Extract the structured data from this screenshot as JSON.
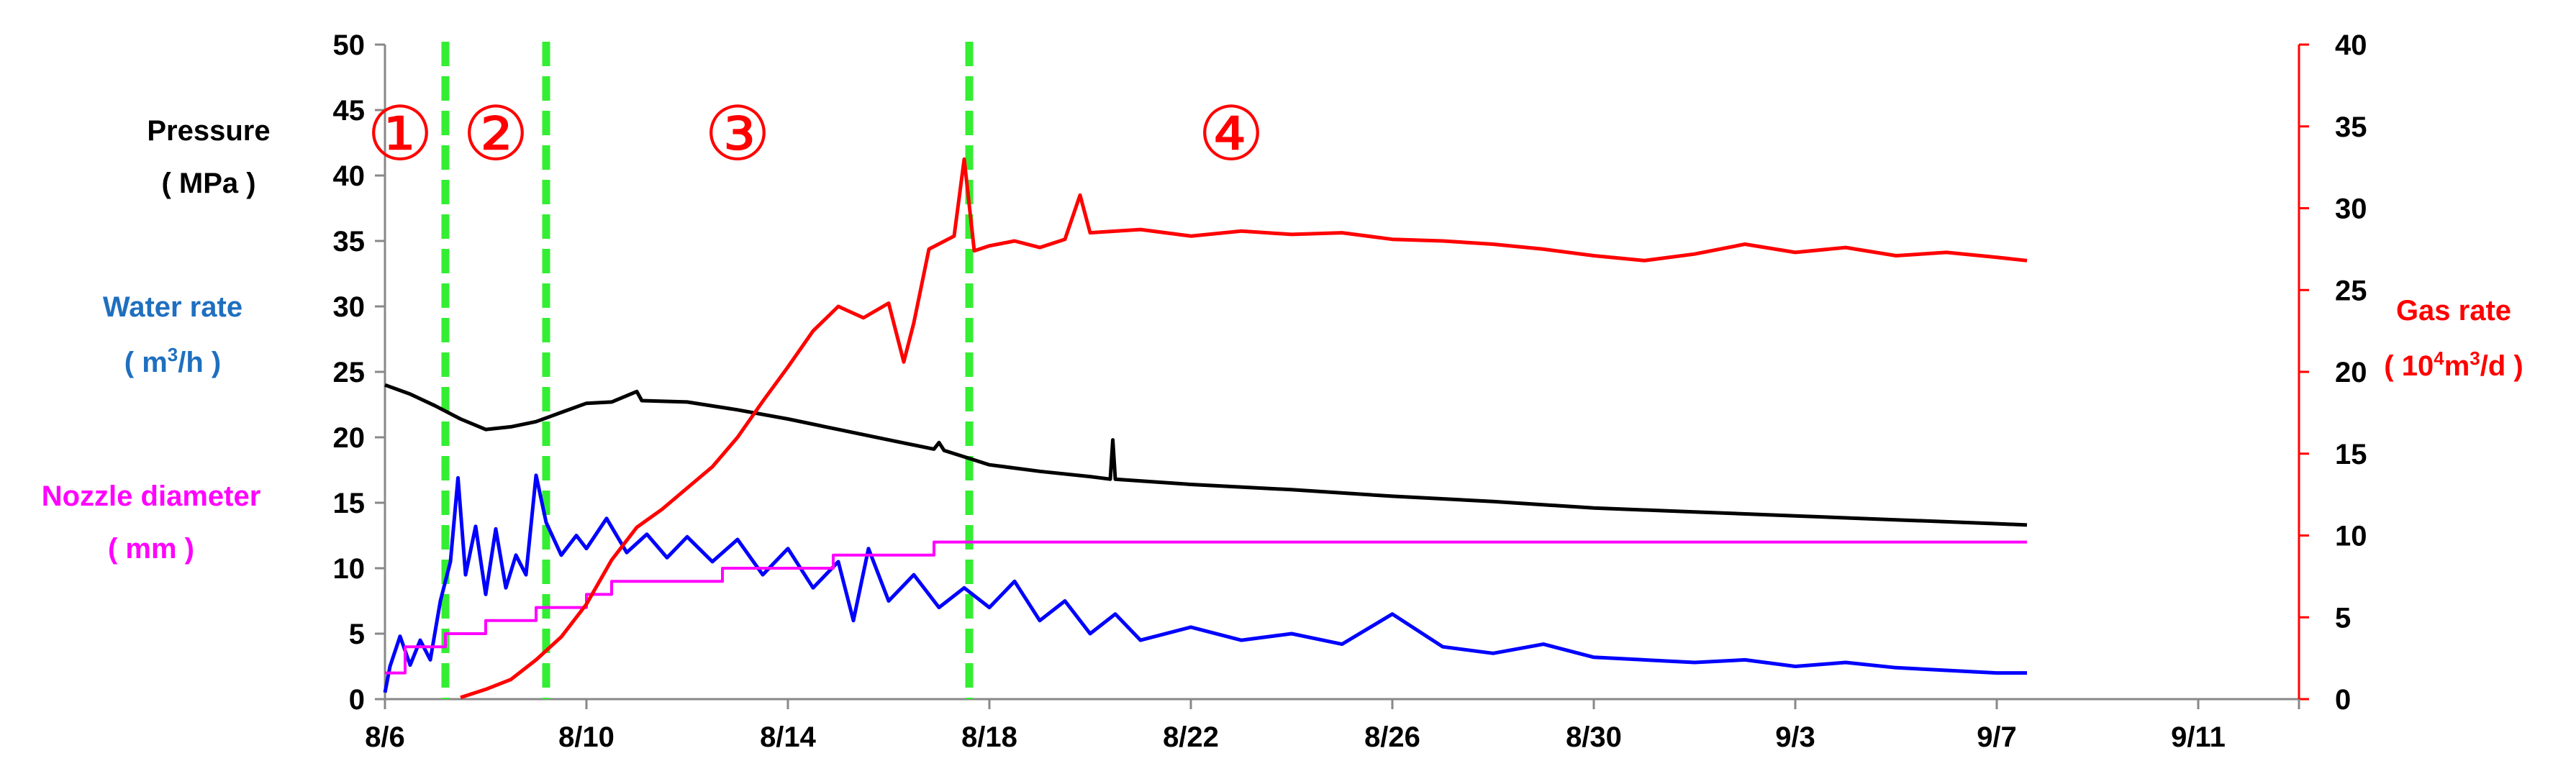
{
  "chart_data": {
    "type": "line",
    "x_axis": {
      "type": "date",
      "start": "8/6",
      "end": "9/13",
      "tick_labels": [
        "8/6",
        "8/10",
        "8/14",
        "8/18",
        "8/22",
        "8/26",
        "8/30",
        "9/3",
        "9/7",
        "9/11"
      ]
    },
    "y_left": {
      "range": [
        0,
        50
      ],
      "ticks": [
        0,
        5,
        10,
        15,
        20,
        25,
        30,
        35,
        40,
        45,
        50
      ],
      "labels": [
        {
          "text": "Pressure",
          "unit": "( MPa )",
          "color": "#000000"
        },
        {
          "text": "Water rate",
          "unit_pre": "( m",
          "unit_sup": "3",
          "unit_post": "/h )",
          "color": "#1f6fbf"
        },
        {
          "text": "Nozzle diameter",
          "unit": "( mm )",
          "color": "#ff00ff"
        }
      ]
    },
    "y_right": {
      "range": [
        0,
        40
      ],
      "ticks": [
        0,
        5,
        10,
        15,
        20,
        25,
        30,
        35,
        40
      ],
      "label": {
        "text": "Gas rate",
        "unit_pre": "( 10",
        "unit_sup": "4",
        "unit_post": "m",
        "unit_sup2": "3",
        "unit_post2": "/d )",
        "color": "#ff0000"
      },
      "color": "#ff0000"
    },
    "phase_markers": [
      "8/7.2",
      "8/9.2",
      "8/17.6"
    ],
    "phase_labels": [
      {
        "text": "①",
        "x": "8/6.3"
      },
      {
        "text": "②",
        "x": "8/8.2"
      },
      {
        "text": "③",
        "x": "8/13.0"
      },
      {
        "text": "④",
        "x": "8/22.8"
      }
    ],
    "series": [
      {
        "name": "Pressure",
        "color": "#000000",
        "axis": "left",
        "points": [
          [
            "8/6",
            24.0
          ],
          [
            "8/6.5",
            23.3
          ],
          [
            "8/7",
            22.4
          ],
          [
            "8/7.5",
            21.4
          ],
          [
            "8/8",
            20.6
          ],
          [
            "8/8.5",
            20.8
          ],
          [
            "8/9",
            21.2
          ],
          [
            "8/9.5",
            21.9
          ],
          [
            "8/10",
            22.6
          ],
          [
            "8/10.5",
            22.7
          ],
          [
            "8/11",
            23.5
          ],
          [
            "8/11.1",
            22.8
          ],
          [
            "8/12",
            22.7
          ],
          [
            "8/13",
            22.1
          ],
          [
            "8/14",
            21.4
          ],
          [
            "8/15",
            20.6
          ],
          [
            "8/16",
            19.8
          ],
          [
            "8/16.9",
            19.1
          ],
          [
            "8/17.0",
            19.6
          ],
          [
            "8/17.1",
            19.0
          ],
          [
            "8/18",
            17.9
          ],
          [
            "8/19",
            17.4
          ],
          [
            "8/20",
            17.0
          ],
          [
            "8/20.4",
            16.8
          ],
          [
            "8/20.45",
            19.8
          ],
          [
            "8/20.5",
            16.8
          ],
          [
            "8/22",
            16.4
          ],
          [
            "8/24",
            16.0
          ],
          [
            "8/26",
            15.5
          ],
          [
            "8/28",
            15.1
          ],
          [
            "8/30",
            14.6
          ],
          [
            "9/1",
            14.3
          ],
          [
            "9/3",
            14.0
          ],
          [
            "9/5",
            13.7
          ],
          [
            "9/7",
            13.4
          ],
          [
            "9/7.6",
            13.3
          ]
        ]
      },
      {
        "name": "Water rate",
        "color": "#0000ff",
        "axis": "left",
        "points": [
          [
            "8/6",
            0.5
          ],
          [
            "8/6.1",
            2.5
          ],
          [
            "8/6.3",
            4.8
          ],
          [
            "8/6.5",
            2.6
          ],
          [
            "8/6.7",
            4.5
          ],
          [
            "8/6.9",
            3.0
          ],
          [
            "8/7.1",
            7.5
          ],
          [
            "8/7.3",
            10.5
          ],
          [
            "8/7.45",
            16.9
          ],
          [
            "8/7.6",
            9.5
          ],
          [
            "8/7.8",
            13.2
          ],
          [
            "8/8.0",
            8.0
          ],
          [
            "8/8.2",
            13.0
          ],
          [
            "8/8.4",
            8.5
          ],
          [
            "8/8.6",
            11.0
          ],
          [
            "8/8.8",
            9.5
          ],
          [
            "8/9.0",
            17.1
          ],
          [
            "8/9.2",
            13.5
          ],
          [
            "8/9.5",
            11.0
          ],
          [
            "8/9.8",
            12.5
          ],
          [
            "8/10",
            11.5
          ],
          [
            "8/10.4",
            13.8
          ],
          [
            "8/10.8",
            11.2
          ],
          [
            "8/11.2",
            12.6
          ],
          [
            "8/11.6",
            10.8
          ],
          [
            "8/12.0",
            12.4
          ],
          [
            "8/12.5",
            10.5
          ],
          [
            "8/13.0",
            12.2
          ],
          [
            "8/13.5",
            9.5
          ],
          [
            "8/14",
            11.5
          ],
          [
            "8/14.5",
            8.5
          ],
          [
            "8/15",
            10.5
          ],
          [
            "8/15.3",
            6.0
          ],
          [
            "8/15.6",
            11.5
          ],
          [
            "8/16",
            7.5
          ],
          [
            "8/16.5",
            9.5
          ],
          [
            "8/17",
            7.0
          ],
          [
            "8/17.5",
            8.5
          ],
          [
            "8/18",
            7.0
          ],
          [
            "8/18.5",
            9.0
          ],
          [
            "8/19",
            6.0
          ],
          [
            "8/19.5",
            7.5
          ],
          [
            "8/20",
            5.0
          ],
          [
            "8/20.5",
            6.5
          ],
          [
            "8/21",
            4.5
          ],
          [
            "8/22",
            5.5
          ],
          [
            "8/23",
            4.5
          ],
          [
            "8/24",
            5.0
          ],
          [
            "8/25",
            4.2
          ],
          [
            "8/26",
            6.5
          ],
          [
            "8/27",
            4.0
          ],
          [
            "8/28",
            3.5
          ],
          [
            "8/29",
            4.2
          ],
          [
            "8/30",
            3.2
          ],
          [
            "8/31",
            3.0
          ],
          [
            "9/1",
            2.8
          ],
          [
            "9/2",
            3.0
          ],
          [
            "9/3",
            2.5
          ],
          [
            "9/4",
            2.8
          ],
          [
            "9/5",
            2.4
          ],
          [
            "9/6",
            2.2
          ],
          [
            "9/7",
            2.0
          ],
          [
            "9/7.6",
            2.0
          ]
        ]
      },
      {
        "name": "Nozzle diameter",
        "color": "#ff00ff",
        "axis": "left",
        "points": [
          [
            "8/6",
            2.0
          ],
          [
            "8/6.4",
            2.0
          ],
          [
            "8/6.4",
            4.0
          ],
          [
            "8/7.2",
            4.0
          ],
          [
            "8/7.2",
            5.0
          ],
          [
            "8/8.0",
            5.0
          ],
          [
            "8/8.0",
            6.0
          ],
          [
            "8/9.0",
            6.0
          ],
          [
            "8/9.0",
            7.0
          ],
          [
            "8/10.0",
            7.0
          ],
          [
            "8/10.0",
            8.0
          ],
          [
            "8/10.5",
            8.0
          ],
          [
            "8/10.5",
            9.0
          ],
          [
            "8/12.7",
            9.0
          ],
          [
            "8/12.7",
            10.0
          ],
          [
            "8/14.9",
            10.0
          ],
          [
            "8/14.9",
            11.0
          ],
          [
            "8/16.9",
            11.0
          ],
          [
            "8/16.9",
            12.0
          ],
          [
            "9/7.6",
            12.0
          ]
        ]
      },
      {
        "name": "Gas rate",
        "color": "#ff0000",
        "axis": "right",
        "points": [
          [
            "8/7.5",
            0.1
          ],
          [
            "8/8",
            0.6
          ],
          [
            "8/8.5",
            1.2
          ],
          [
            "8/9",
            2.4
          ],
          [
            "8/9.5",
            3.8
          ],
          [
            "8/10",
            5.8
          ],
          [
            "8/10.5",
            8.5
          ],
          [
            "8/11",
            10.5
          ],
          [
            "8/11.5",
            11.6
          ],
          [
            "8/12",
            12.9
          ],
          [
            "8/12.5",
            14.2
          ],
          [
            "8/13",
            16.0
          ],
          [
            "8/13.5",
            18.2
          ],
          [
            "8/14",
            20.3
          ],
          [
            "8/14.5",
            22.5
          ],
          [
            "8/15",
            24.0
          ],
          [
            "8/15.5",
            23.3
          ],
          [
            "8/16",
            24.2
          ],
          [
            "8/16.3",
            20.6
          ],
          [
            "8/16.5",
            23.0
          ],
          [
            "8/16.8",
            27.5
          ],
          [
            "8/17.3",
            28.3
          ],
          [
            "8/17.5",
            33.0
          ],
          [
            "8/17.7",
            27.4
          ],
          [
            "8/18",
            27.7
          ],
          [
            "8/18.5",
            28.0
          ],
          [
            "8/19",
            27.6
          ],
          [
            "8/19.5",
            28.1
          ],
          [
            "8/19.8",
            30.8
          ],
          [
            "8/20",
            28.5
          ],
          [
            "8/21",
            28.7
          ],
          [
            "8/22",
            28.3
          ],
          [
            "8/23",
            28.6
          ],
          [
            "8/24",
            28.4
          ],
          [
            "8/25",
            28.5
          ],
          [
            "8/26",
            28.1
          ],
          [
            "8/27",
            28.0
          ],
          [
            "8/28",
            27.8
          ],
          [
            "8/29",
            27.5
          ],
          [
            "8/30",
            27.1
          ],
          [
            "8/31",
            26.8
          ],
          [
            "9/1",
            27.2
          ],
          [
            "9/2",
            27.8
          ],
          [
            "9/3",
            27.3
          ],
          [
            "9/4",
            27.6
          ],
          [
            "9/5",
            27.1
          ],
          [
            "9/6",
            27.3
          ],
          [
            "9/7",
            27.0
          ],
          [
            "9/7.6",
            26.8
          ]
        ]
      }
    ],
    "grid": false,
    "legend": "none"
  }
}
